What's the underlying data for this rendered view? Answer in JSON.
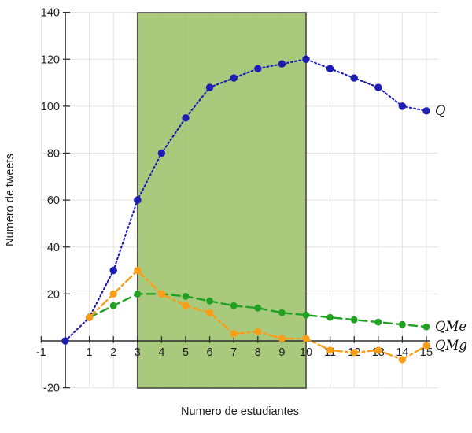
{
  "chart_data": {
    "type": "line",
    "title": "",
    "xlabel": "Numero de estudiantes",
    "ylabel": "Numero de tweets",
    "xlim": [
      -1,
      15.5
    ],
    "ylim": [
      -20,
      140
    ],
    "x_ticks": [
      -1,
      1,
      2,
      3,
      4,
      5,
      6,
      7,
      8,
      9,
      10,
      11,
      12,
      13,
      14,
      15
    ],
    "y_ticks": [
      -20,
      20,
      40,
      60,
      80,
      100,
      120,
      140
    ],
    "grid": true,
    "legend_position": "line-end-labels",
    "colors": {
      "grid": "#e3e3e3",
      "axis": "#2e2e2e",
      "tick_label": "#1f1f24",
      "band_fill": "#9ABF65",
      "band_border": "#54554C",
      "series_label": "#111111"
    },
    "highlight_band": {
      "x_start": 3,
      "x_end": 10
    },
    "series": [
      {
        "name": "Q",
        "label": "Q",
        "color": "#1E1EB4",
        "style": "dotted",
        "x": [
          0,
          1,
          2,
          3,
          4,
          5,
          6,
          7,
          8,
          9,
          10,
          11,
          12,
          13,
          14,
          15
        ],
        "y": [
          0,
          10,
          30,
          60,
          80,
          95,
          108,
          112,
          116,
          118,
          120,
          116,
          112,
          108,
          100,
          98
        ]
      },
      {
        "name": "QMe",
        "label": "QMe",
        "color": "#21A121",
        "style": "dashed",
        "x": [
          1,
          2,
          3,
          4,
          5,
          6,
          7,
          8,
          9,
          10,
          11,
          12,
          13,
          14,
          15
        ],
        "y": [
          10,
          15,
          20,
          20,
          19,
          17,
          15,
          14,
          12,
          11,
          10,
          9,
          8,
          7,
          6
        ]
      },
      {
        "name": "QMg",
        "label": "QMg",
        "color": "#FB9E17",
        "style": "dashdot",
        "x": [
          1,
          2,
          3,
          4,
          5,
          6,
          7,
          8,
          9,
          10,
          11,
          12,
          13,
          14,
          15
        ],
        "y": [
          10,
          20,
          30,
          20,
          15,
          12,
          3,
          4,
          1,
          1,
          -4,
          -5,
          -4,
          -8,
          -2
        ]
      }
    ]
  }
}
